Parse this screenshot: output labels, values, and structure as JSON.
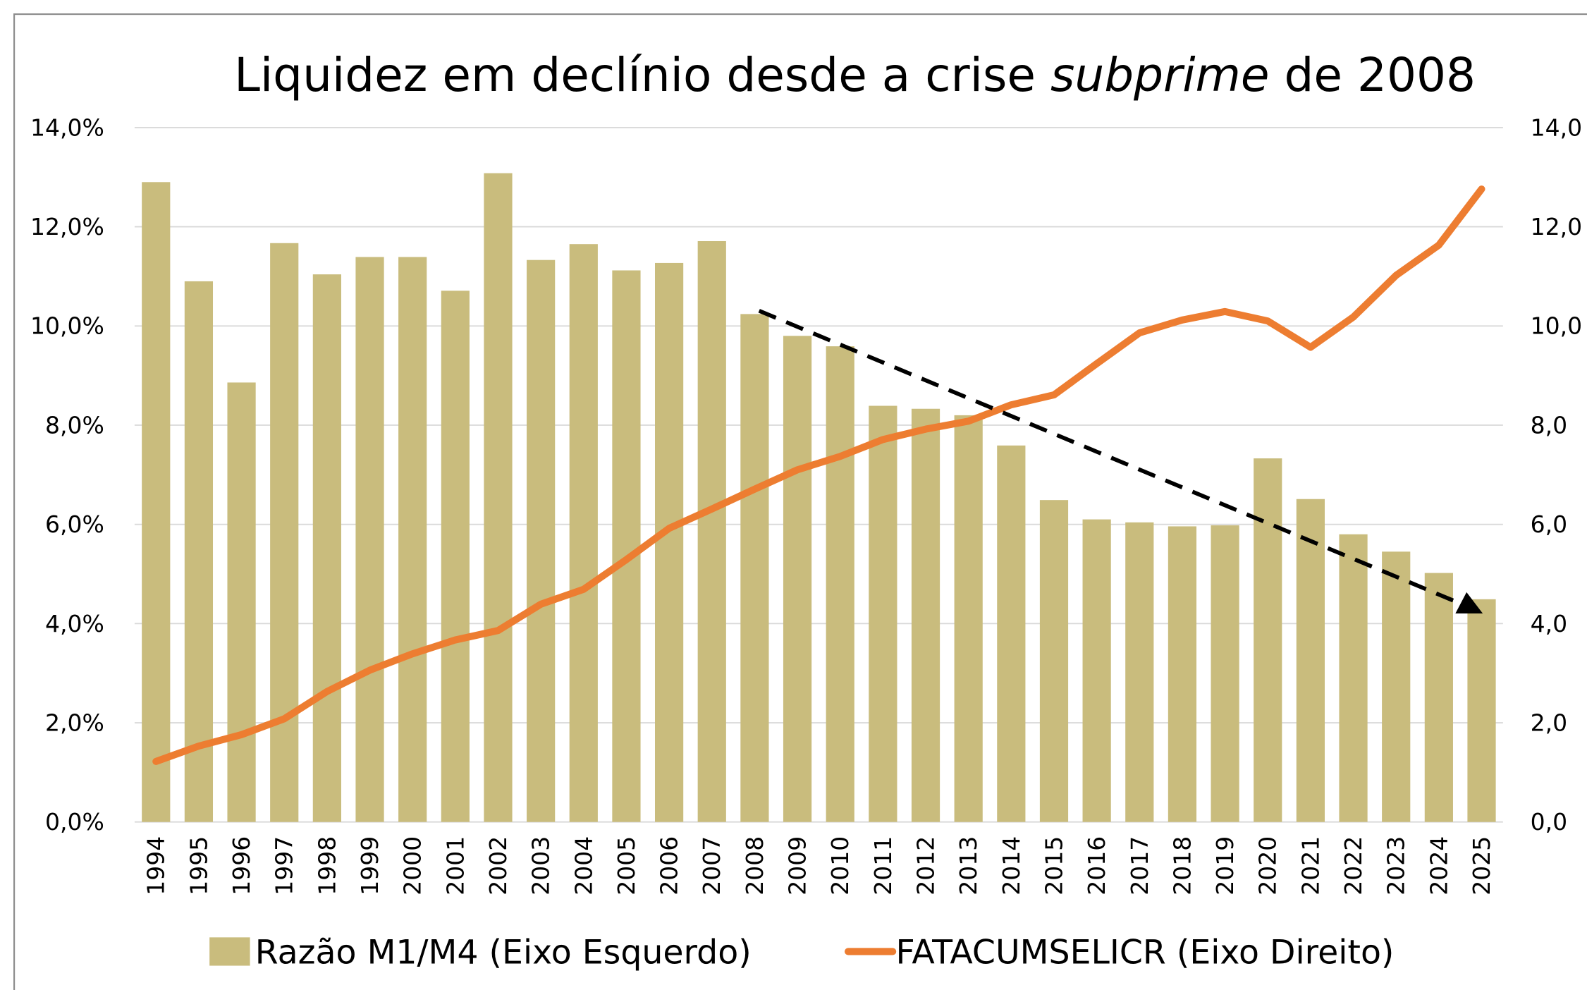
{
  "chart_data": {
    "type": "bar-line",
    "title_parts": [
      "Liquidez em declínio desde a crise ",
      "subprime",
      " de 2008"
    ],
    "categories": [
      "1994",
      "1995",
      "1996",
      "1997",
      "1998",
      "1999",
      "2000",
      "2001",
      "2002",
      "2003",
      "2004",
      "2005",
      "2006",
      "2007",
      "2008",
      "2009",
      "2010",
      "2011",
      "2012",
      "2013",
      "2014",
      "2015",
      "2016",
      "2017",
      "2018",
      "2019",
      "2020",
      "2021",
      "2022",
      "2023",
      "2024",
      "2025"
    ],
    "series": [
      {
        "name": "Razão M1/M4 (Eixo Esquerdo)",
        "type": "bar",
        "axis": "y",
        "color": "#c9bc7d",
        "values": [
          12.9,
          10.9,
          8.86,
          11.67,
          11.04,
          11.39,
          11.39,
          10.71,
          13.08,
          11.33,
          11.65,
          11.12,
          11.27,
          11.71,
          10.24,
          9.8,
          9.59,
          8.39,
          8.33,
          8.2,
          7.59,
          6.49,
          6.1,
          6.04,
          5.96,
          5.98,
          7.33,
          6.51,
          5.8,
          5.45,
          5.02,
          4.49
        ]
      },
      {
        "name": "FATACUMSELICR (Eixo Direito)",
        "type": "line",
        "axis": "y2",
        "color": "#ed7d31",
        "values": [
          1.22,
          1.53,
          1.76,
          2.08,
          2.63,
          3.06,
          3.39,
          3.67,
          3.86,
          4.39,
          4.69,
          5.29,
          5.92,
          6.31,
          6.71,
          7.1,
          7.37,
          7.71,
          7.92,
          8.08,
          8.41,
          8.61,
          9.24,
          9.86,
          10.12,
          10.29,
          10.1,
          9.57,
          10.18,
          11.02,
          11.63,
          12.76
        ]
      }
    ],
    "ylim": [
      0,
      14
    ],
    "yticks": [
      {
        "value": 0,
        "label": "0,0%"
      },
      {
        "value": 2,
        "label": "2,0%"
      },
      {
        "value": 4,
        "label": "4,0%"
      },
      {
        "value": 6,
        "label": "6,0%"
      },
      {
        "value": 8,
        "label": "8,0%"
      },
      {
        "value": 10,
        "label": "10,0%"
      },
      {
        "value": 12,
        "label": "12,0%"
      },
      {
        "value": 14,
        "label": "14,0%"
      }
    ],
    "y2lim": [
      0,
      14
    ],
    "y2ticks": [
      {
        "value": 0,
        "label": "0,0"
      },
      {
        "value": 2,
        "label": "2,0"
      },
      {
        "value": 4,
        "label": "4,0"
      },
      {
        "value": 6,
        "label": "6,0"
      },
      {
        "value": 8,
        "label": "8,0"
      },
      {
        "value": 10,
        "label": "10,0"
      },
      {
        "value": 12,
        "label": "12,0"
      },
      {
        "value": 14,
        "label": "14,0"
      }
    ],
    "grid": true,
    "legend": "bottom"
  }
}
